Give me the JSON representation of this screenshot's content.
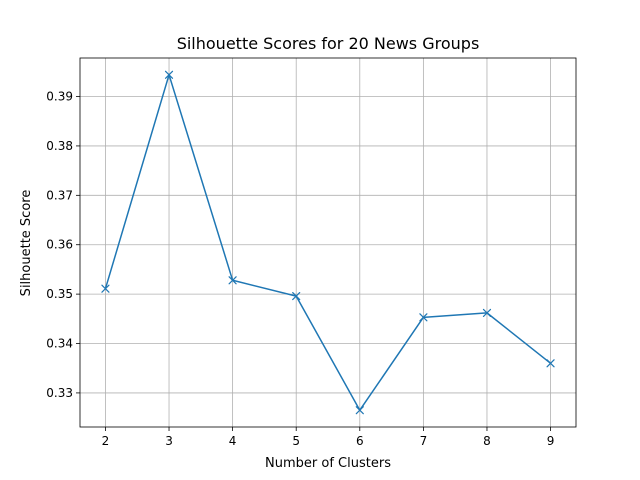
{
  "chart_data": {
    "type": "line",
    "title": "Silhouette Scores for 20 News Groups",
    "xlabel": "Number of Clusters",
    "ylabel": "Silhouette Score",
    "x": [
      2,
      3,
      4,
      5,
      6,
      7,
      8,
      9
    ],
    "series": [
      {
        "values": [
          0.3511,
          0.3944,
          0.3528,
          0.3496,
          0.3265,
          0.3453,
          0.3462,
          0.336
        ],
        "color": "#1f77b4",
        "marker": "x"
      }
    ],
    "xlim": [
      1.6,
      9.4
    ],
    "ylim": [
      0.3231,
      0.3978
    ],
    "xticks": [
      2,
      3,
      4,
      5,
      6,
      7,
      8,
      9
    ],
    "yticks": [
      0.33,
      0.34,
      0.35,
      0.36,
      0.37,
      0.38,
      0.39
    ],
    "ytick_labels": [
      "0.33",
      "0.34",
      "0.35",
      "0.36",
      "0.37",
      "0.38",
      "0.39"
    ],
    "grid": true
  }
}
